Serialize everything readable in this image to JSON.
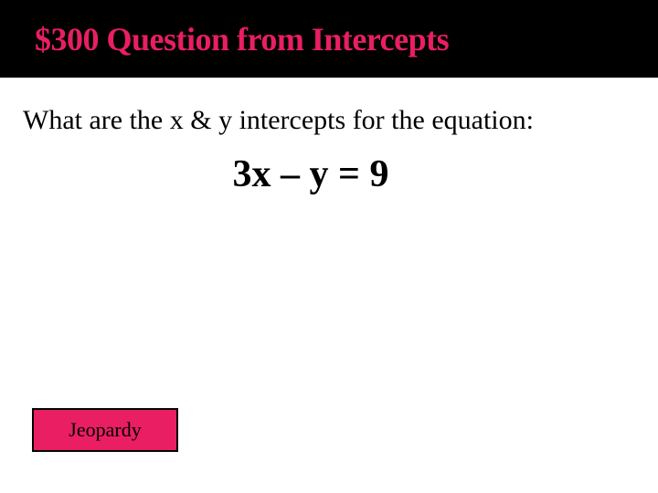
{
  "slide": {
    "title": "$300 Question from Intercepts",
    "title_color": "#e91e63",
    "title_bg_color": "#000000",
    "title_fontsize": 36,
    "background_color": "#ffffff"
  },
  "question": {
    "text": "What are the x & y intercepts for the equation:",
    "text_color": "#000000",
    "text_fontsize": 30,
    "equation": "3x – y = 9",
    "equation_fontsize": 42,
    "equation_fontweight": "bold"
  },
  "button": {
    "label": "Jeopardy",
    "bg_color": "#e91e63",
    "border_color": "#000000",
    "text_color": "#000000",
    "fontsize": 22
  }
}
